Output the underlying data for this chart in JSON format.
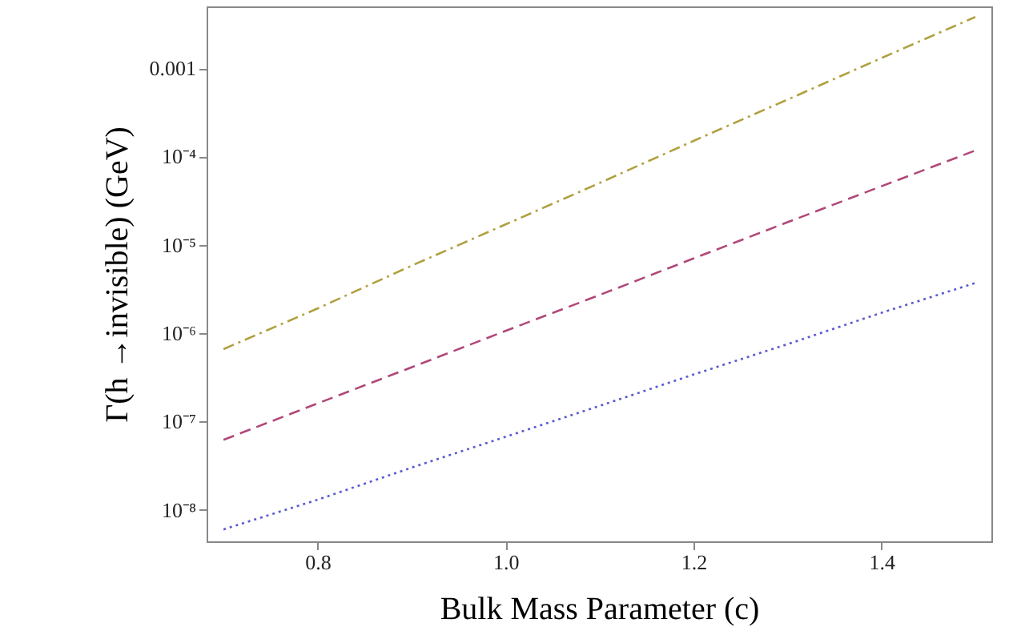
{
  "chart_data": {
    "type": "line",
    "xlabel": "Bulk Mass Parameter (c)",
    "ylabel": "Γ(h →invisible) (GeV)",
    "log": "y",
    "grid": false,
    "marker": "none",
    "x": [
      0.7,
      0.8,
      0.9,
      1.0,
      1.1,
      1.2,
      1.3,
      1.4,
      1.5
    ],
    "series": [
      {
        "color": "#b0a040",
        "line_style": "dashdot",
        "values": [
          6.6e-07,
          1.9e-06,
          5.8e-06,
          1.7e-05,
          5e-05,
          0.00015,
          0.00044,
          0.0013,
          0.0038
        ]
      },
      {
        "color": "#b04878",
        "line_style": "dashed",
        "values": [
          6.2e-08,
          1.6e-07,
          4.1e-07,
          1.06e-06,
          2.7e-06,
          7e-06,
          1.8e-05,
          4.6e-05,
          0.000117
        ]
      },
      {
        "color": "#5a5ad0",
        "line_style": "dotted",
        "values": [
          6e-09,
          1.3e-08,
          3e-08,
          6.7e-08,
          1.5e-07,
          3.4e-07,
          7.5e-07,
          1.7e-06,
          3.7e-06
        ]
      }
    ],
    "xlim": [
      0.682,
      1.517
    ],
    "ylim": [
      4.4e-09,
      0.005
    ],
    "xticks": [
      0.8,
      {
        "value": 1.0,
        "label": "1.0"
      },
      1.2,
      1.4
    ],
    "yticks": [
      {
        "value": 1e-08,
        "label": "10⁻⁸"
      },
      {
        "value": 1e-07,
        "label": "10⁻⁷"
      },
      {
        "value": 1e-06,
        "label": "10⁻⁶"
      },
      {
        "value": 1e-05,
        "label": "10⁻⁵"
      },
      {
        "value": 0.0001,
        "label": "10⁻⁴"
      },
      0.001
    ]
  }
}
